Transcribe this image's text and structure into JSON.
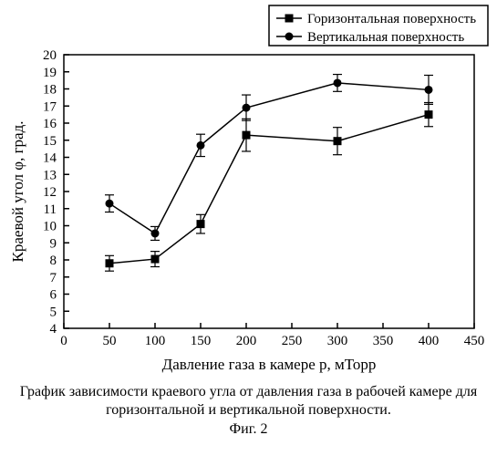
{
  "chart": {
    "type": "line-scatter-errorbar",
    "background_color": "#ffffff",
    "axis_color": "#000000",
    "line_width": 1.5,
    "marker_size": 8,
    "xlabel": "Давление газа в камере p, мТорр",
    "ylabel": "Краевой угол φ, град.",
    "label_fontsize": 17,
    "tick_fontsize": 15,
    "xlim": [
      0,
      450
    ],
    "ylim": [
      4,
      20
    ],
    "xtick_step": 50,
    "ytick_step": 1,
    "series": [
      {
        "name": "Горизонтальная поверхность",
        "marker": "square",
        "color": "#000000",
        "x": [
          50,
          100,
          150,
          200,
          300,
          400
        ],
        "y": [
          7.8,
          8.05,
          10.1,
          15.3,
          14.95,
          16.5
        ],
        "err": [
          0.45,
          0.45,
          0.55,
          0.95,
          0.8,
          0.7
        ]
      },
      {
        "name": "Вертикальная поверхность",
        "marker": "circle",
        "color": "#000000",
        "x": [
          50,
          100,
          150,
          200,
          300,
          400
        ],
        "y": [
          11.3,
          9.55,
          14.7,
          16.9,
          18.35,
          17.95
        ],
        "err": [
          0.5,
          0.4,
          0.65,
          0.75,
          0.5,
          0.85
        ]
      }
    ],
    "legend": {
      "items": [
        "Горизонтальная поверхность",
        "Вертикальная поверхность"
      ],
      "position": "top-right-outside"
    }
  },
  "caption_line1": "График зависимости краевого угла от давления газа в рабочей камере для",
  "caption_line2": "горизонтальной и вертикальной поверхности.",
  "figure_label": "Фиг. 2"
}
